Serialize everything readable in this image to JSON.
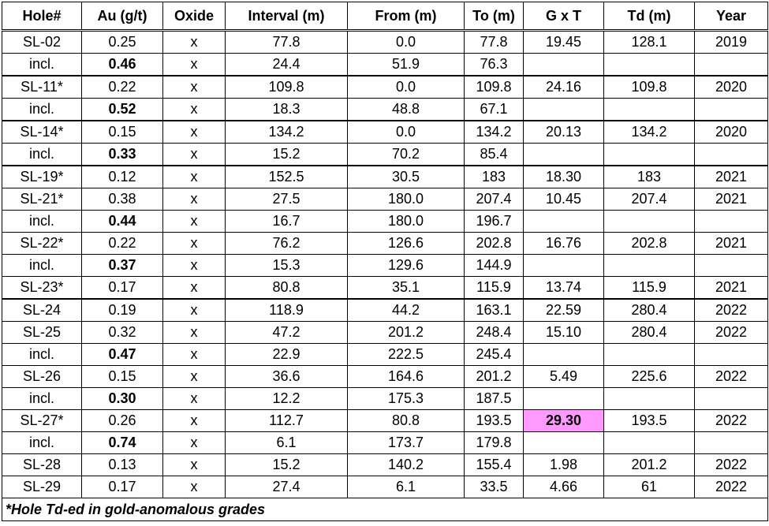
{
  "table": {
    "header": [
      "Hole#",
      "Au (g/t)",
      "Oxide",
      "Interval (m)",
      "From (m)",
      "To (m)",
      "G x T",
      "Td (m)",
      "Year"
    ],
    "rows": [
      [
        "SL-02",
        "0.25",
        "x",
        "77.8",
        "0.0",
        "77.8",
        "19.45",
        "128.1",
        "2019"
      ],
      [
        "incl.",
        "0.46",
        "x",
        "24.4",
        "51.9",
        "76.3",
        null,
        null,
        null
      ],
      [
        "SL-11*",
        "0.22",
        "x",
        "109.8",
        "0.0",
        "109.8",
        "24.16",
        "109.8",
        "2020"
      ],
      [
        "incl.",
        "0.52",
        "x",
        "18.3",
        "48.8",
        "67.1",
        null,
        null,
        null
      ],
      [
        "SL-14*",
        "0.15",
        "x",
        "134.2",
        "0.0",
        "134.2",
        "20.13",
        "134.2",
        "2020"
      ],
      [
        "incl.",
        "0.33",
        "x",
        "15.2",
        "70.2",
        "85.4",
        null,
        null,
        null
      ],
      [
        "SL-19*",
        "0.12",
        "x",
        "152.5",
        "30.5",
        "183",
        "18.30",
        "183",
        "2021"
      ],
      [
        "SL-21*",
        "0.38",
        "x",
        "27.5",
        "180.0",
        "207.4",
        "10.45",
        "207.4",
        "2021"
      ],
      [
        "incl.",
        "0.44",
        "x",
        "16.7",
        "180.0",
        "196.7",
        null,
        null,
        null
      ],
      [
        "SL-22*",
        "0.22",
        "x",
        "76.2",
        "126.6",
        "202.8",
        "16.76",
        "202.8",
        "2021"
      ],
      [
        "incl.",
        "0.37",
        "x",
        "15.3",
        "129.6",
        "144.9",
        null,
        null,
        null
      ],
      [
        "SL-23*",
        "0.17",
        "x",
        "80.8",
        "35.1",
        "115.9",
        "13.74",
        "115.9",
        "2021"
      ],
      [
        "SL-24",
        "0.19",
        "x",
        "118.9",
        "44.2",
        "163.1",
        "22.59",
        "280.4",
        "2022"
      ],
      [
        "SL-25",
        "0.32",
        "x",
        "47.2",
        "201.2",
        "248.4",
        "15.10",
        "280.4",
        "2022"
      ],
      [
        "incl.",
        "0.47",
        "x",
        "22.9",
        "222.5",
        "245.4",
        null,
        null,
        null
      ],
      [
        "SL-26",
        "0.15",
        "x",
        "36.6",
        "164.6",
        "201.2",
        "5.49",
        "225.6",
        "2022"
      ],
      [
        "incl.",
        "0.30",
        "x",
        "12.2",
        "175.3",
        "187.5",
        null,
        null,
        null
      ],
      [
        "SL-27*",
        "0.26",
        "x",
        "112.7",
        "80.8",
        "193.5",
        "29.30",
        "193.5",
        "2022"
      ],
      [
        "incl.",
        "0.74",
        "x",
        "6.1",
        "173.7",
        "179.8",
        null,
        null,
        null
      ],
      [
        "SL-28",
        "0.13",
        "x",
        "15.2",
        "140.2",
        "155.4",
        "1.98",
        "201.2",
        "2022"
      ],
      [
        "SL-29",
        "0.17",
        "x",
        "27.4",
        "6.1",
        "33.5",
        "4.66",
        "61",
        "2022"
      ]
    ],
    "footnote": "*Hole Td-ed in gold-anomalous grades"
  }
}
